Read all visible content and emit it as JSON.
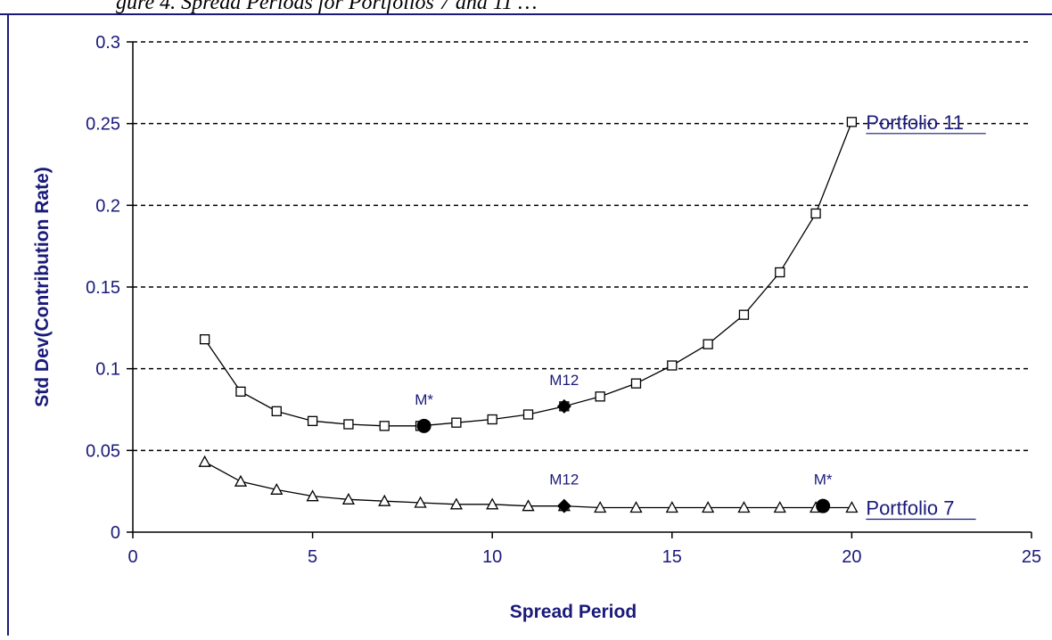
{
  "page": {
    "caption": "gure 4. Spread Periods for Portfolios 7 and 11 …"
  },
  "colors": {
    "axis_text": "#1a1a7a",
    "line": "#000000",
    "grid": "#000000",
    "frame": "#1a1a7a"
  },
  "chart_data": {
    "type": "line",
    "title": "",
    "xlabel": "Spread Period",
    "ylabel": "Std Dev(Contribution Rate)",
    "xlim": [
      0,
      25
    ],
    "ylim": [
      0,
      0.3
    ],
    "x_ticks": [
      0,
      5,
      10,
      15,
      20,
      25
    ],
    "y_ticks": [
      0,
      0.05,
      0.1,
      0.15,
      0.2,
      0.25,
      0.3
    ],
    "x_tick_labels": [
      "0",
      "5",
      "10",
      "15",
      "20",
      "25"
    ],
    "y_tick_labels": [
      "0",
      "0.05",
      "0.1",
      "0.15",
      "0.2",
      "0.25",
      "0.3"
    ],
    "grid": {
      "horizontal": "dashed",
      "vertical": false
    },
    "series": [
      {
        "name": "Portfolio 11",
        "marker": "square-open",
        "x": [
          2,
          3,
          4,
          5,
          6,
          7,
          8,
          9,
          10,
          11,
          12,
          13,
          14,
          15,
          16,
          17,
          18,
          19,
          20
        ],
        "values": [
          0.118,
          0.086,
          0.074,
          0.068,
          0.066,
          0.065,
          0.065,
          0.067,
          0.069,
          0.072,
          0.077,
          0.083,
          0.091,
          0.102,
          0.115,
          0.133,
          0.159,
          0.195,
          0.251
        ]
      },
      {
        "name": "Portfolio 7",
        "marker": "triangle-open",
        "x": [
          2,
          3,
          4,
          5,
          6,
          7,
          8,
          9,
          10,
          11,
          12,
          13,
          14,
          15,
          16,
          17,
          18,
          19,
          20
        ],
        "values": [
          0.043,
          0.031,
          0.026,
          0.022,
          0.02,
          0.019,
          0.018,
          0.017,
          0.017,
          0.016,
          0.016,
          0.015,
          0.015,
          0.015,
          0.015,
          0.015,
          0.015,
          0.015,
          0.015
        ]
      }
    ],
    "highlights": [
      {
        "series": "Portfolio 11",
        "label": "M*",
        "x": 8.1,
        "y": 0.065
      },
      {
        "series": "Portfolio 11",
        "label": "M12",
        "x": 12,
        "y": 0.077
      },
      {
        "series": "Portfolio 7",
        "label": "M12",
        "x": 12,
        "y": 0.016
      },
      {
        "series": "Portfolio 7",
        "label": "M*",
        "x": 19.2,
        "y": 0.016
      }
    ]
  }
}
